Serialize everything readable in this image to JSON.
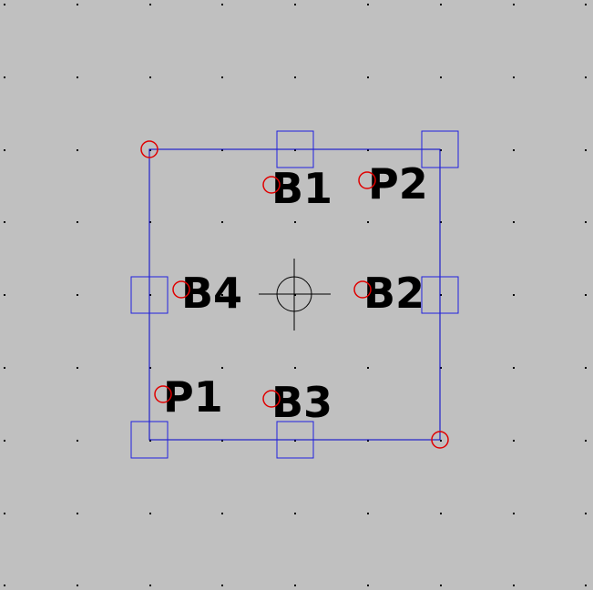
{
  "colors": {
    "background": "#c0c0c0",
    "grid_dot": "#000000",
    "outline": "#0000cc",
    "pin_box": "#2020e0",
    "anchor": "#e00000",
    "crosshair": "#000000"
  },
  "icons": {
    "crosshair": "origin-crosshair-icon",
    "anchor": "anchor-circle-icon",
    "pin": "pin-box-icon"
  },
  "labels": {
    "b1": "B1",
    "p2": "P2",
    "b4": "B4",
    "b2": "B2",
    "p1": "P1",
    "b3": "B3"
  }
}
